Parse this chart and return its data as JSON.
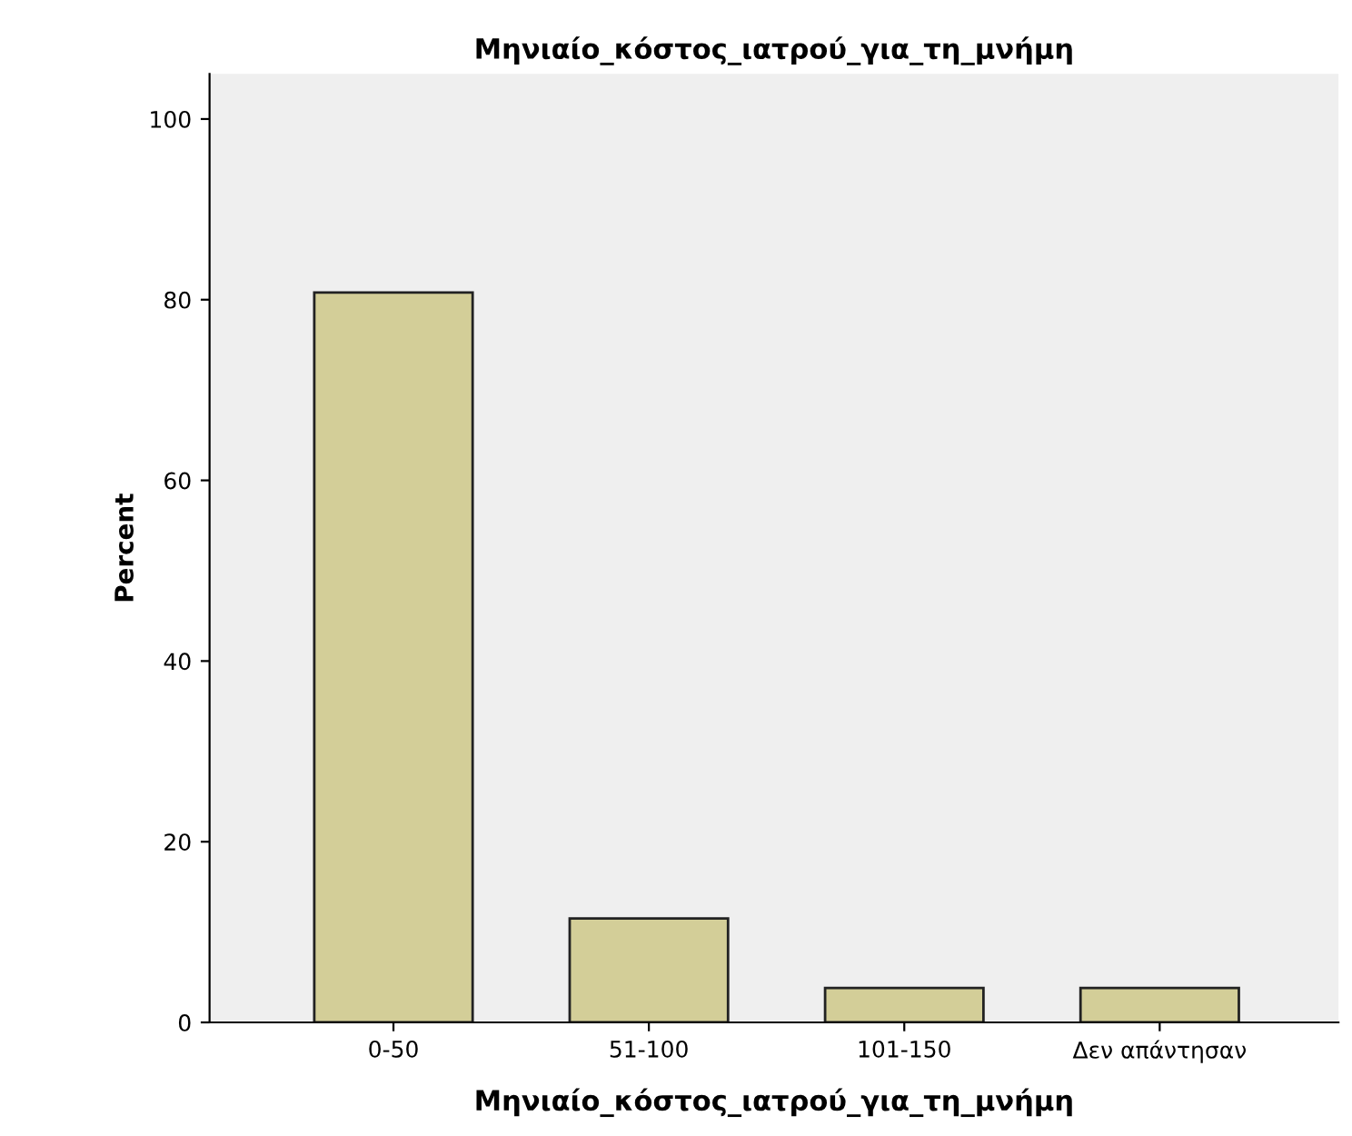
{
  "chart_data": {
    "type": "bar",
    "title": "Μηνιαίο_κόστος_ιατρού_για_τη_μνήμη",
    "xlabel": "Μηνιαίο_κόστος_ιατρού_για_τη_μνήμη",
    "ylabel": "Percent",
    "categories": [
      "0-50",
      "51-100",
      "101-150",
      "Δεν απάντησαν"
    ],
    "values": [
      80.8,
      11.5,
      3.8,
      3.8
    ],
    "color": "#d3ce98",
    "ylim": [
      0,
      105
    ],
    "yticks": [
      0,
      20,
      40,
      60,
      80,
      100
    ],
    "grid": false,
    "legend": false
  }
}
